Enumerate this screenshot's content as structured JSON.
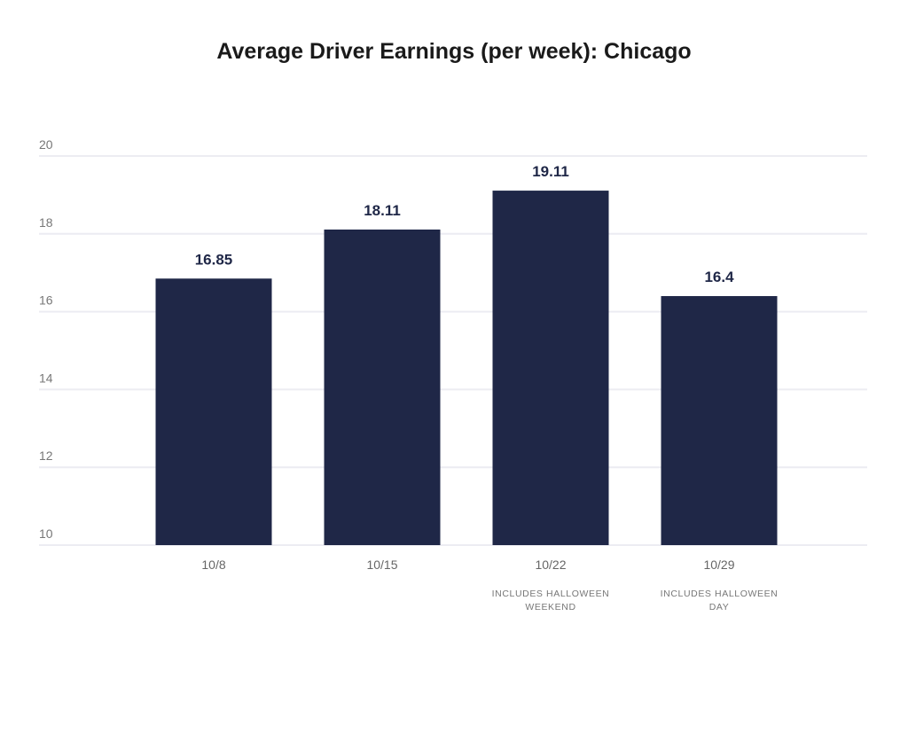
{
  "chart_data": {
    "type": "bar",
    "title": "Average Driver Earnings (per week): Chicago",
    "categories": [
      "10/8",
      "10/15",
      "10/22",
      "10/29"
    ],
    "category_notes": [
      [],
      [],
      [
        "INCLUDES HALLOWEEN",
        "WEEKEND"
      ],
      [
        "INCLUDES HALLOWEEN",
        "DAY"
      ]
    ],
    "values": [
      16.85,
      18.11,
      19.11,
      16.4
    ],
    "value_labels": [
      "16.85",
      "18.11",
      "19.11",
      "16.4"
    ],
    "ylim": [
      10,
      20
    ],
    "yticks": [
      10,
      12,
      14,
      16,
      18,
      20
    ],
    "xlabel": "",
    "ylabel": "",
    "grid": true,
    "bar_color": "#1f2747",
    "value_label_color": "#1f2747",
    "grid_color": "#ececf2"
  }
}
